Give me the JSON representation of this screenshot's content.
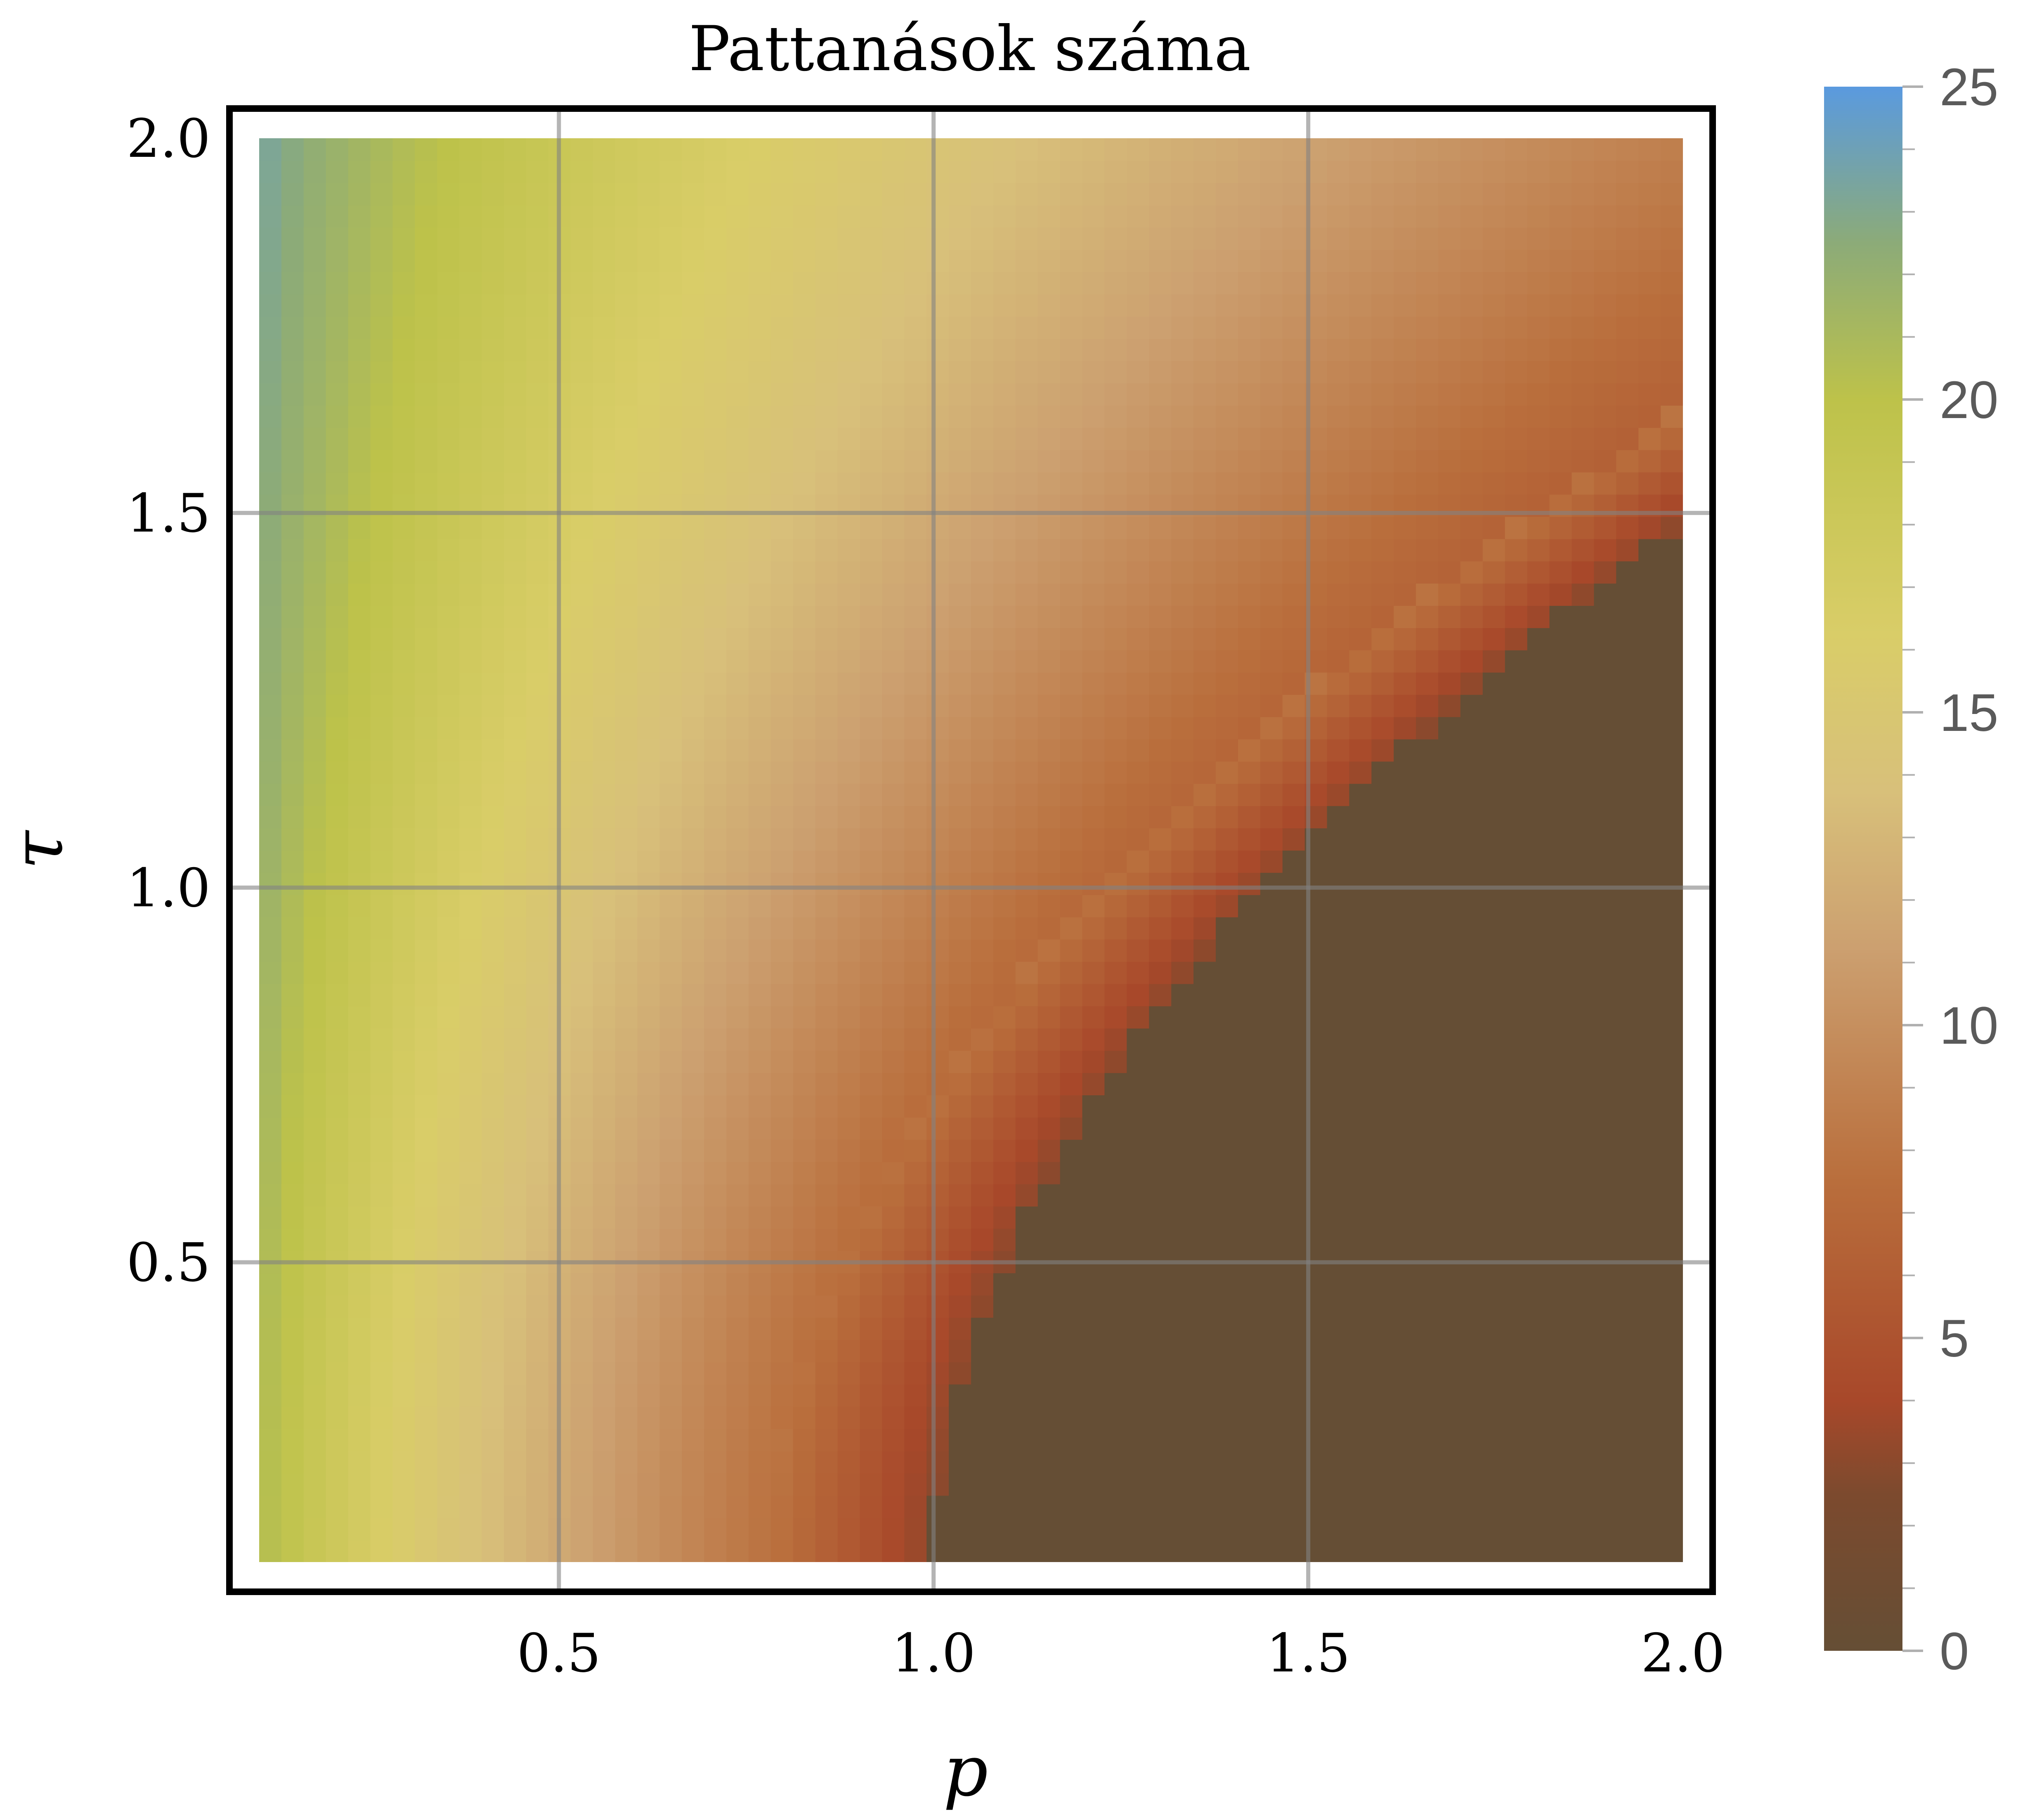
{
  "chart_data": {
    "type": "heatmap",
    "title": "Pattanások száma",
    "xlabel": "p",
    "ylabel": "τ",
    "xlim": [
      0.1,
      2.0
    ],
    "ylim": [
      0.1,
      2.0
    ],
    "xticks": [
      "0.5",
      "1.0",
      "1.5",
      "2.0"
    ],
    "yticks": [
      "0.5",
      "1.0",
      "1.5",
      "2.0"
    ],
    "grid": true,
    "colorbar": {
      "range": [
        0,
        25
      ],
      "ticks": [
        "0",
        "5",
        "10",
        "15",
        "20",
        "25"
      ],
      "colors": [
        "#654e35",
        "#a8482a",
        "#b86f3a",
        "#d4b07a",
        "#d9c96a",
        "#c5c54a",
        "#90ae74",
        "#5e9bdc"
      ]
    },
    "boundary_curve": {
      "description_points": [
        {
          "p": 1.0,
          "tau": 0.1
        },
        {
          "p": 1.03,
          "tau": 0.5
        },
        {
          "p": 1.2,
          "tau": 0.9
        },
        {
          "p": 1.5,
          "tau": 1.2
        },
        {
          "p": 2.0,
          "tau": 1.45
        }
      ]
    }
  }
}
